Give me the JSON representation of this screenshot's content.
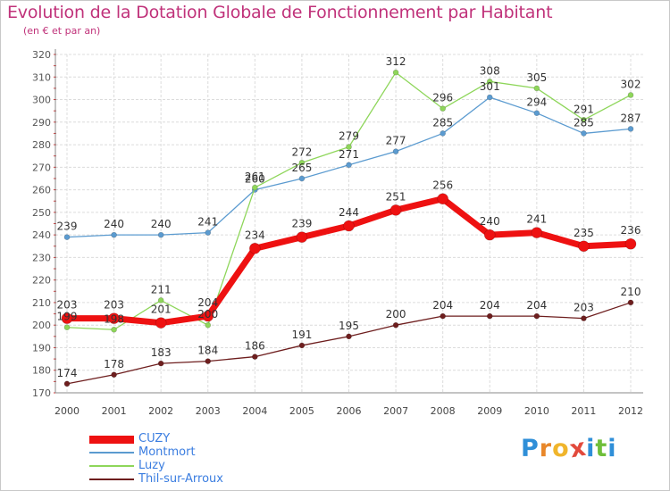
{
  "title": "Evolution de la Dotation Globale de Fonctionnement par Habitant",
  "subtitle": "(en € et par an)",
  "logo": {
    "letters": [
      "P",
      "r",
      "o",
      "x",
      "i",
      "t",
      "i"
    ],
    "colors": [
      "#2f8fd8",
      "#e8872a",
      "#f0b52c",
      "#e24a3c",
      "#2f8fd8",
      "#6fbf3a",
      "#2f8fd8"
    ]
  },
  "chart_data": {
    "type": "line",
    "title": "Evolution de la Dotation Globale de Fonctionnement par Habitant",
    "subtitle": "(en € et par an)",
    "xlabel": "",
    "ylabel": "",
    "ylim": [
      170,
      320
    ],
    "yticks": [
      170,
      180,
      190,
      200,
      210,
      220,
      230,
      240,
      250,
      260,
      270,
      280,
      290,
      300,
      310,
      320
    ],
    "grid": true,
    "legend_position": "bottom-left",
    "categories": [
      "2000",
      "2001",
      "2002",
      "2003",
      "2004",
      "2005",
      "2006",
      "2007",
      "2008",
      "2009",
      "2010",
      "2011",
      "2012"
    ],
    "series": [
      {
        "name": "Montmort",
        "color": "#5b9bd0",
        "values": [
          239,
          240,
          240,
          241,
          260,
          265,
          271,
          277,
          285,
          301,
          294,
          285,
          287
        ]
      },
      {
        "name": "Luzy",
        "color": "#8ed65a",
        "values": [
          199,
          198,
          211,
          200,
          261,
          272,
          279,
          312,
          296,
          308,
          305,
          291,
          302
        ]
      },
      {
        "name": "Thil-sur-Arroux",
        "color": "#6e1e1e",
        "values": [
          174,
          178,
          183,
          184,
          186,
          191,
          195,
          200,
          204,
          204,
          204,
          203,
          210
        ]
      },
      {
        "name": "CUZY",
        "color": "#ee1111",
        "values": [
          203,
          203,
          201,
          204,
          234,
          239,
          244,
          251,
          256,
          240,
          241,
          235,
          236
        ]
      }
    ],
    "legend_order": [
      "CUZY",
      "Montmort",
      "Luzy",
      "Thil-sur-Arroux"
    ]
  }
}
